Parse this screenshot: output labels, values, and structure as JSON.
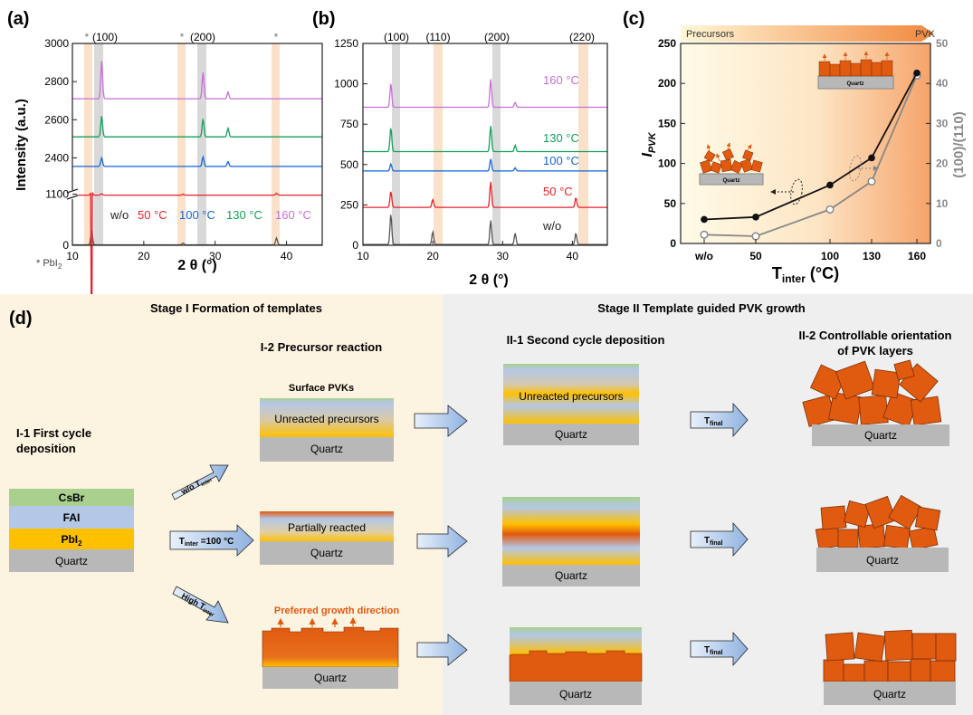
{
  "colors": {
    "wo": "#555555",
    "t50": "#e8202a",
    "t100": "#1565d8",
    "t130": "#12a058",
    "t160": "#c86fd6",
    "orange": "#e05a10",
    "quartz": "#b8b8b8",
    "csbr": "#a9d08e",
    "fai": "#b4c7e7",
    "pbi2": "#ffc000",
    "stage1_bg": "#fdf3e1",
    "stage2_bg": "#efefef",
    "arrow_fill": "#b7cdea",
    "highlight_gray": "#cccccc",
    "highlight_orange": "#fbe1c9"
  },
  "panel_a": {
    "label": "(a)",
    "ylabel": "Intensity (a.u.)",
    "xlabel": "2 θ (°)",
    "peak_labels": [
      "(100)",
      "(200)"
    ],
    "star": "*",
    "star_legend": "* PbI",
    "star_legend_sub": "2",
    "legend": [
      {
        "text": "w/o",
        "color_key": "wo"
      },
      {
        "text": "50 °C",
        "color_key": "t50"
      },
      {
        "text": "100 °C",
        "color_key": "t100"
      },
      {
        "text": "130 °C",
        "color_key": "t130"
      },
      {
        "text": "160 °C",
        "color_key": "t160"
      }
    ]
  },
  "panel_b": {
    "label": "(b)",
    "xlabel": "2 θ (°)",
    "peak_labels": [
      "(100)",
      "(110)",
      "(200)",
      "(220)"
    ],
    "trace_labels": [
      "160 °C",
      "130 °C",
      "100 °C",
      "50 °C",
      "w/o"
    ]
  },
  "panel_c": {
    "label": "(c)",
    "ylabel_left": "I",
    "ylabel_left_sub": "PVK",
    "ylabel_right": "(100)/(110)",
    "xlabel": "T",
    "xlabel_sub": "inter",
    "xlabel_unit": " (°C)",
    "top_left": "Precursors",
    "top_right": "PVK",
    "quartz_label": "Quartz"
  },
  "chart_data": [
    {
      "type": "line",
      "panel": "(a)",
      "xlabel": "2 θ (°)",
      "ylabel": "Intensity (a.u.)",
      "xlim": [
        10,
        45
      ],
      "ylim_axis_break": true,
      "ticks_y": [
        "0",
        "1100",
        "2400",
        "2600",
        "2800",
        "3000"
      ],
      "ticks_x": [
        "10",
        "20",
        "30",
        "40"
      ],
      "peaks_deg": [
        12.7,
        14.1,
        28.3,
        31.8,
        38.6
      ],
      "series": [
        {
          "name": "w/o",
          "baseline": 10,
          "peaks": [
            [
              12.7,
              300
            ],
            [
              25.5,
              35
            ],
            [
              38.6,
              150
            ]
          ]
        },
        {
          "name": "50 °C",
          "baseline": 1080,
          "peaks": [
            [
              12.7,
              80
            ],
            [
              14.1,
              30
            ],
            [
              25.5,
              20
            ],
            [
              38.6,
              40
            ]
          ]
        },
        {
          "name": "100 °C",
          "baseline": 2355,
          "peaks": [
            [
              14.1,
              45
            ],
            [
              28.3,
              50
            ],
            [
              31.8,
              25
            ]
          ]
        },
        {
          "name": "130 °C",
          "baseline": 2510,
          "peaks": [
            [
              14.1,
              110
            ],
            [
              28.3,
              95
            ],
            [
              31.8,
              45
            ]
          ]
        },
        {
          "name": "160 °C",
          "baseline": 2710,
          "peaks": [
            [
              14.1,
              200
            ],
            [
              28.3,
              140
            ],
            [
              31.8,
              35
            ]
          ]
        }
      ]
    },
    {
      "type": "line",
      "panel": "(b)",
      "xlabel": "2 θ (°)",
      "xlim": [
        10,
        45
      ],
      "ylim": [
        0,
        1250
      ],
      "ticks_y": [
        "0",
        "250",
        "500",
        "750",
        "1000",
        "1250"
      ],
      "ticks_x": [
        "10",
        "20",
        "30",
        "40"
      ],
      "series": [
        {
          "name": "w/o",
          "baseline": 5,
          "peaks": [
            [
              14.0,
              190
            ],
            [
              20.0,
              80
            ],
            [
              28.3,
              150
            ],
            [
              31.8,
              70
            ],
            [
              40.5,
              70
            ]
          ]
        },
        {
          "name": "50 °C",
          "baseline": 235,
          "peaks": [
            [
              14.0,
              100
            ],
            [
              20.0,
              50
            ],
            [
              28.3,
              160
            ],
            [
              40.5,
              60
            ]
          ]
        },
        {
          "name": "100 °C",
          "baseline": 460,
          "peaks": [
            [
              14.0,
              45
            ],
            [
              28.3,
              75
            ],
            [
              31.8,
              20
            ]
          ]
        },
        {
          "name": "130 °C",
          "baseline": 580,
          "peaks": [
            [
              14.0,
              150
            ],
            [
              28.3,
              160
            ],
            [
              31.8,
              40
            ]
          ]
        },
        {
          "name": "160 °C",
          "baseline": 855,
          "peaks": [
            [
              14.0,
              150
            ],
            [
              28.3,
              175
            ],
            [
              31.8,
              30
            ]
          ]
        }
      ]
    },
    {
      "type": "line",
      "panel": "(c)",
      "categories": [
        "w/o",
        "50",
        "100",
        "130",
        "160"
      ],
      "xlabel": "T inter (°C)",
      "ylabel_left": "I PVK",
      "ylabel_right": "(100)/(110)",
      "ylim_left": [
        0,
        250
      ],
      "ylim_right": [
        0,
        50
      ],
      "ticks_left": [
        "0",
        "50",
        "100",
        "150",
        "200",
        "250"
      ],
      "ticks_right": [
        "0",
        "10",
        "20",
        "30",
        "40",
        "50"
      ],
      "series": [
        {
          "name": "I_PVK",
          "axis": "left",
          "values": [
            30,
            33,
            73,
            107,
            213
          ]
        },
        {
          "name": "(100)/(110)",
          "axis": "right",
          "values": [
            2.2,
            1.8,
            8.5,
            15.5,
            42
          ]
        }
      ]
    }
  ],
  "panel_d": {
    "label": "(d)",
    "stage1_title": "Stage I Formation of templates",
    "stage2_title": "Stage II Template guided PVK growth",
    "i1_title": [
      "I-1 First cycle",
      "deposition"
    ],
    "i2_title": "I-2 Precursor reaction",
    "ii1_title": "II-1 Second cycle deposition",
    "ii2_title": [
      "II-2 Controllable orientation",
      "of PVK layers"
    ],
    "layers": [
      "CsBr",
      "FAI",
      "PbI",
      "Quartz"
    ],
    "pbi2_sub": "2",
    "arrow_labels": {
      "wo": "w/o T",
      "wo_sub": "inter",
      "mid": "T",
      "mid_sub": "inter",
      "mid_rest": " =100 °C",
      "high": "High T",
      "high_sub": "inter",
      "final": "T",
      "final_sub": "final"
    },
    "surface_pvks": "Surface PVKs",
    "unreacted": "Unreacted precursors",
    "partially": "Partially reacted",
    "preferred": "Preferred growth direction",
    "quartz": "Quartz"
  }
}
